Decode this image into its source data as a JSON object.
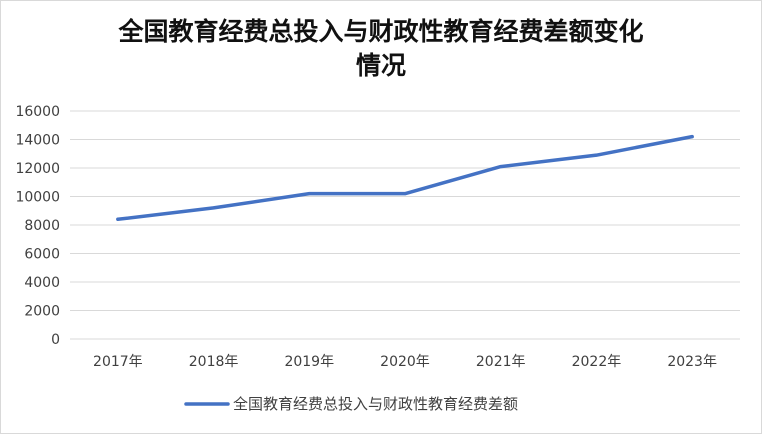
{
  "chart_data": {
    "type": "line",
    "title": "全国教育经费总投入与财政性教育经费差额变化情况",
    "title_lines": [
      "全国教育经费总投入与财政性教育经费差额变化",
      "情况"
    ],
    "xlabel": "",
    "ylabel": "",
    "categories": [
      "2017年",
      "2018年",
      "2019年",
      "2020年",
      "2021年",
      "2022年",
      "2023年"
    ],
    "series": [
      {
        "name": "全国教育经费总投入与财政性教育经费差额",
        "values": [
          8400,
          9200,
          10200,
          10200,
          12100,
          12900,
          14200
        ],
        "color": "#4472c4"
      }
    ],
    "ylim": [
      0,
      16000
    ],
    "yticks": [
      0,
      2000,
      4000,
      6000,
      8000,
      10000,
      12000,
      14000,
      16000
    ],
    "grid": true,
    "legend": "bottom"
  }
}
